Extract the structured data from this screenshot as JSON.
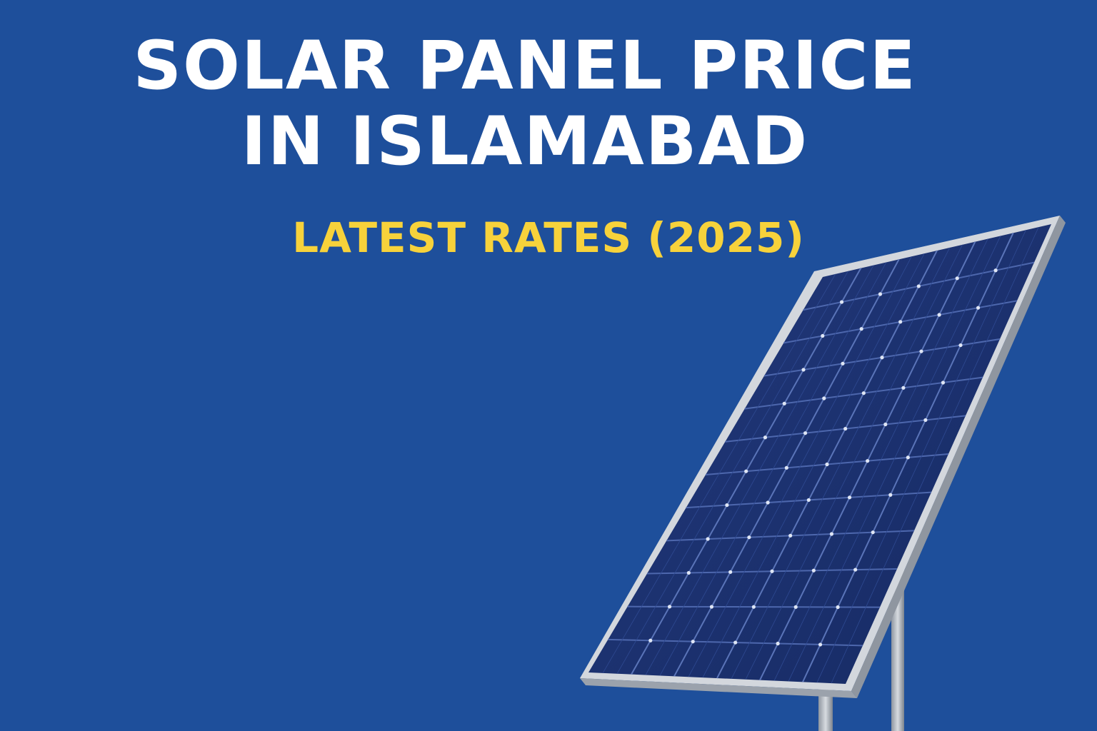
{
  "headline": {
    "line1": "SOLAR PANEL PRICE",
    "line2": "IN ISLAMABAD"
  },
  "subheadline": "LATEST RATES (2025)",
  "colors": {
    "background": "#1e4f9b",
    "headline": "#ffffff",
    "subheadline": "#f7d23b",
    "panel_cells": "#1a2f6e",
    "panel_frame": "#c9ced6"
  },
  "illustration": {
    "icon": "solar-panel-icon",
    "cell_rows": 12,
    "cell_columns": 6
  }
}
